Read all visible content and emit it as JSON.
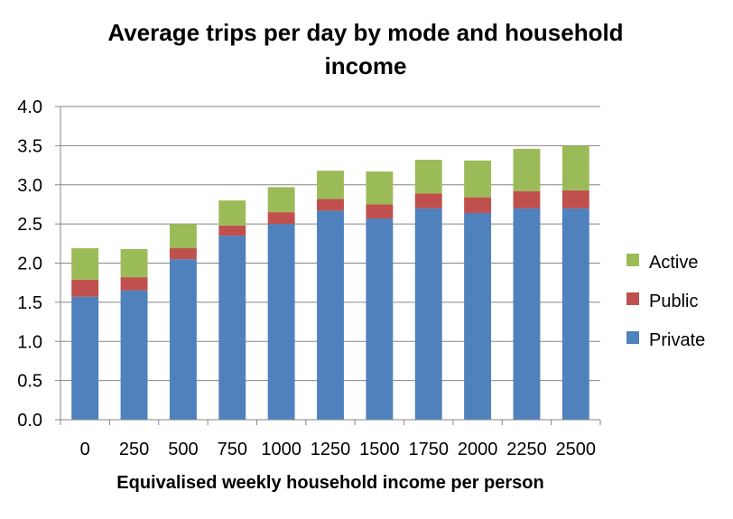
{
  "chart_data": {
    "type": "bar",
    "stacked": true,
    "title_lines": [
      "Average trips per day by mode and household",
      "income"
    ],
    "xlabel": "Equivalised weekly household income per person",
    "ylabel": "",
    "categories": [
      "0",
      "250",
      "500",
      "750",
      "1000",
      "1250",
      "1500",
      "1750",
      "2000",
      "2250",
      "2500"
    ],
    "y_ticks": [
      "0.0",
      "0.5",
      "1.0",
      "1.5",
      "2.0",
      "2.5",
      "3.0",
      "3.5",
      "4.0"
    ],
    "ylim": [
      0,
      4
    ],
    "grid": true,
    "legend_position": "right",
    "series": [
      {
        "name": "Private",
        "color": "#4f81bd",
        "values": [
          1.57,
          1.65,
          2.05,
          2.35,
          2.5,
          2.67,
          2.57,
          2.7,
          2.64,
          2.7,
          2.7
        ]
      },
      {
        "name": "Public",
        "color": "#c0504d",
        "values": [
          0.22,
          0.17,
          0.14,
          0.13,
          0.15,
          0.15,
          0.18,
          0.19,
          0.2,
          0.22,
          0.23
        ]
      },
      {
        "name": "Active",
        "color": "#9bbb59",
        "values": [
          0.4,
          0.36,
          0.31,
          0.32,
          0.32,
          0.36,
          0.42,
          0.43,
          0.47,
          0.54,
          0.57
        ]
      }
    ]
  }
}
